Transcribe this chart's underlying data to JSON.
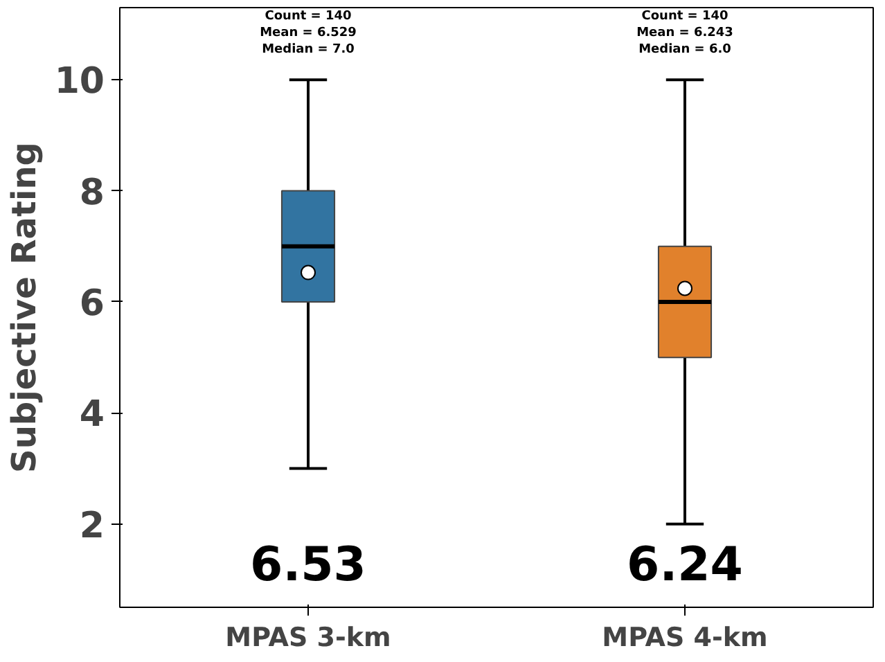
{
  "chart_data": {
    "type": "box",
    "ylabel": "Subjective Rating",
    "categories": [
      "MPAS 3-km",
      "MPAS 4-km"
    ],
    "colors": [
      "#3274a1",
      "#e1812c"
    ],
    "boxes": [
      {
        "low": 3,
        "q1": 6,
        "median": 7,
        "q3": 8,
        "high": 10,
        "mean": 6.529
      },
      {
        "low": 2,
        "q1": 5,
        "median": 6,
        "q3": 7,
        "high": 10,
        "mean": 6.243
      }
    ],
    "ylim": [
      0.5,
      11.3
    ],
    "yticks": [
      2,
      4,
      6,
      8,
      10
    ],
    "grid": false,
    "annotations": [
      "Count = 140",
      "Mean = 6.529",
      "Median = 7.0",
      "Count = 140",
      "Mean = 6.243",
      "Median = 6.0",
      "6.53",
      "6.24"
    ]
  }
}
